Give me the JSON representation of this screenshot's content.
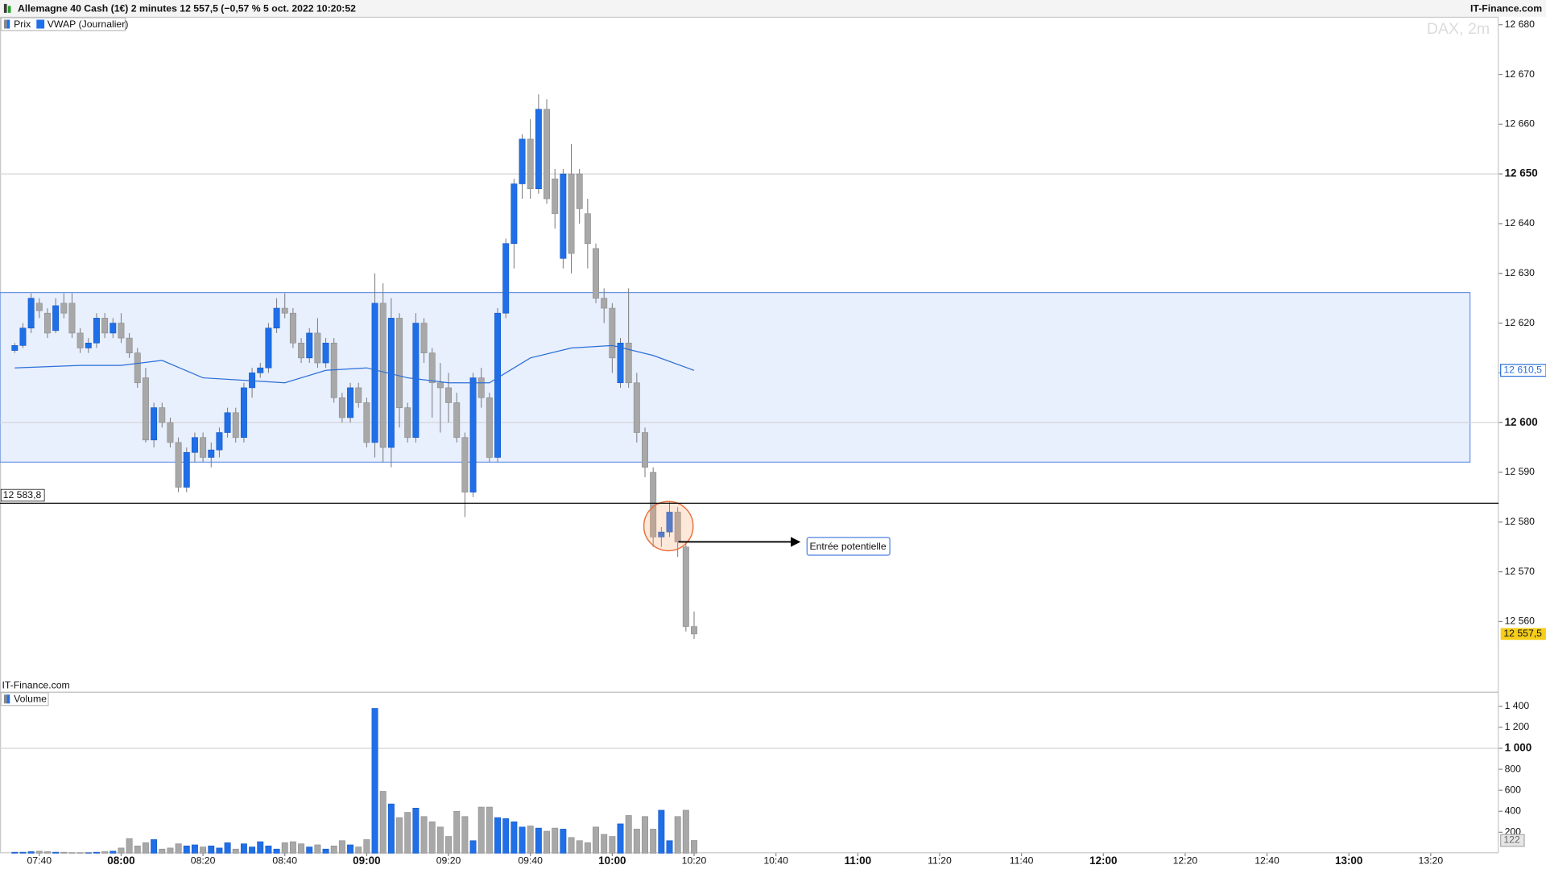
{
  "chart_data": {
    "type": "candlestick",
    "title": "Allemagne 40 Cash (1€) 2 minutes 12 557,5 (−0,57 % 5 oct. 2022 10:20:52",
    "source": "IT-Finance.com",
    "watermark": "DAX, 2m",
    "pane_source": "IT-Finance.com",
    "legend": [
      "Prix",
      "VWAP (Journalier)"
    ],
    "volume_legend": "Volume",
    "annotation": "Entrée potentielle",
    "up_color": "#1f6fe8",
    "down_color": "#a8a8a8",
    "vwap_color": "#2a6fd6",
    "x": [
      454,
      456,
      458,
      460,
      462,
      464,
      466,
      468,
      470,
      472,
      474,
      476,
      478,
      480,
      482,
      484,
      486,
      488,
      490,
      492,
      494,
      496,
      498,
      500,
      502,
      504,
      506,
      508,
      510,
      512,
      514,
      516,
      518,
      520,
      522,
      524,
      526,
      528,
      530,
      532,
      534,
      536,
      538,
      540,
      542,
      544,
      546,
      548,
      550,
      552,
      554,
      556,
      558,
      560,
      562,
      564,
      566,
      568,
      570,
      572,
      574,
      576,
      578,
      580,
      582,
      584,
      586,
      588,
      590,
      592,
      594,
      596,
      598,
      600,
      602,
      604,
      606,
      608,
      610,
      612,
      614,
      616,
      618,
      620
    ],
    "open": [
      12614.5,
      12615.5,
      12619,
      12624,
      12622,
      12618.5,
      12624,
      12624,
      12618,
      12615,
      12616,
      12621,
      12618,
      12620,
      12617,
      12614,
      12609,
      12596.5,
      12603,
      12600,
      12596,
      12587,
      12594,
      12597,
      12593,
      12594.5,
      12598,
      12602,
      12597,
      12607,
      12610,
      12611,
      12619,
      12623,
      12622,
      12616,
      12613,
      12618,
      12612,
      12616,
      12605,
      12601,
      12607,
      12604,
      12596,
      12624,
      12595,
      12621,
      12603,
      12597,
      12620,
      12614,
      12608,
      12607,
      12604,
      12597,
      12586,
      12609,
      12605,
      12593,
      12622,
      12636,
      12648,
      12657,
      12647,
      12663,
      12649,
      12633,
      12650,
      12650,
      12642,
      12635,
      12625,
      12623,
      12608,
      12616,
      12608,
      12598,
      12590,
      12577,
      12578,
      12582,
      12575,
      12559
    ],
    "high": [
      12616,
      12620,
      12626,
      12625,
      12623,
      12625,
      12626,
      12626,
      12619,
      12617,
      12622,
      12622,
      12621,
      12622,
      12618,
      12615,
      12611,
      12604,
      12604,
      12601,
      12597,
      12595,
      12598,
      12598,
      12596,
      12599,
      12603,
      12603,
      12608,
      12611,
      12612,
      12620,
      12625,
      12626,
      12623,
      12617,
      12619,
      12621,
      12617,
      12617,
      12606,
      12608,
      12608,
      12605,
      12630,
      12628,
      12625,
      12622,
      12604,
      12622,
      12621,
      12615,
      12612,
      12610,
      12606,
      12598,
      12610,
      12611,
      12606,
      12623,
      12637,
      12649,
      12658,
      12661,
      12666,
      12665,
      12651,
      12651,
      12656,
      12651,
      12645,
      12636,
      12627,
      12624,
      12617,
      12627,
      12610,
      12599,
      12591,
      12579,
      12584,
      12583,
      12576,
      12562
    ],
    "low": [
      12614,
      12615,
      12618,
      12621,
      12617,
      12618,
      12621,
      12617,
      12614,
      12614,
      12615,
      12617,
      12617,
      12616,
      12613,
      12607,
      12596,
      12595,
      12599,
      12595,
      12586,
      12586,
      12592,
      12592,
      12591,
      12593,
      12597,
      12596,
      12596,
      12605,
      12609,
      12610,
      12618,
      12621,
      12615,
      12612,
      12612,
      12611,
      12611,
      12604,
      12600,
      12600,
      12603,
      12595,
      12593,
      12592,
      12591,
      12599,
      12596,
      12596,
      12612,
      12601,
      12598,
      12600,
      12596,
      12581,
      12585,
      12603,
      12592,
      12592,
      12621,
      12631,
      12645,
      12645,
      12646,
      12644,
      12639,
      12631,
      12630,
      12640,
      12631,
      12624,
      12620,
      12610,
      12607,
      12607,
      12596,
      12589,
      12575,
      12575,
      12577,
      12573,
      12558,
      12556.5
    ],
    "close": [
      12615.5,
      12619,
      12625,
      12622.5,
      12618,
      12623.5,
      12622,
      12618,
      12615,
      12616,
      12621,
      12618,
      12620,
      12617,
      12614,
      12608,
      12596.5,
      12603,
      12600,
      12596,
      12587,
      12594,
      12597,
      12593,
      12594.5,
      12598,
      12602,
      12597,
      12607,
      12610,
      12611,
      12619,
      12623,
      12622,
      12616,
      12613,
      12618,
      12612,
      12616,
      12605,
      12601,
      12607,
      12604,
      12596,
      12624,
      12595,
      12621,
      12603,
      12597,
      12620,
      12614,
      12608,
      12607,
      12604,
      12597,
      12586,
      12609,
      12605,
      12593,
      12622,
      12636,
      12648,
      12657,
      12647,
      12663,
      12645,
      12642,
      12650,
      12634,
      12643,
      12636,
      12625,
      12623,
      12613,
      12616,
      12608,
      12598,
      12591,
      12577,
      12578,
      12582,
      12576,
      12559,
      12557.5
    ],
    "volume": [
      10,
      10,
      15,
      20,
      15,
      10,
      10,
      5,
      5,
      5,
      10,
      15,
      20,
      50,
      140,
      70,
      100,
      130,
      40,
      50,
      90,
      70,
      80,
      60,
      70,
      50,
      100,
      40,
      90,
      60,
      110,
      70,
      40,
      100,
      110,
      90,
      60,
      80,
      40,
      70,
      120,
      80,
      60,
      130,
      1380,
      590,
      470,
      340,
      390,
      430,
      350,
      300,
      250,
      160,
      400,
      350,
      120,
      440,
      440,
      340,
      330,
      300,
      250,
      260,
      240,
      210,
      240,
      230,
      150,
      120,
      100,
      250,
      180,
      160,
      280,
      360,
      230,
      350,
      230,
      410,
      120,
      350,
      410,
      122
    ],
    "vwap_x": [
      454,
      470,
      480,
      490,
      500,
      510,
      520,
      530,
      540,
      550,
      560,
      570,
      580,
      590,
      600,
      610,
      620
    ],
    "vwap": [
      12611,
      12611.5,
      12611.5,
      12612.5,
      12609,
      12608.5,
      12608,
      12610.5,
      12611,
      12609,
      12608,
      12608,
      12613,
      12615,
      12615.5,
      12613.5,
      12610.5
    ],
    "level": {
      "value": 12583.8,
      "label": "12 583,8"
    },
    "last_labels": {
      "close": "12 557,5",
      "vwap": "12 610,5",
      "volume": "122"
    },
    "xlim": [
      450.4,
      816.6
    ],
    "xticks": [
      {
        "value": 460,
        "label": "07:40"
      },
      {
        "value": 480,
        "label": "08:00"
      },
      {
        "value": 500,
        "label": "08:20"
      },
      {
        "value": 520,
        "label": "08:40"
      },
      {
        "value": 540,
        "label": "09:00"
      },
      {
        "value": 560,
        "label": "09:20"
      },
      {
        "value": 580,
        "label": "09:40"
      },
      {
        "value": 600,
        "label": "10:00"
      },
      {
        "value": 620,
        "label": "10:20"
      },
      {
        "value": 640,
        "label": "10:40"
      },
      {
        "value": 660,
        "label": "11:00"
      },
      {
        "value": 680,
        "label": "11:20"
      },
      {
        "value": 700,
        "label": "11:40"
      },
      {
        "value": 720,
        "label": "12:00"
      },
      {
        "value": 740,
        "label": "12:20"
      },
      {
        "value": 760,
        "label": "12:40"
      },
      {
        "value": 780,
        "label": "13:00"
      },
      {
        "value": 800,
        "label": "13:20"
      }
    ],
    "ylim": [
      12545.9,
      12681.6
    ],
    "yticks": [
      {
        "value": 12560,
        "label": "12 560"
      },
      {
        "value": 12570,
        "label": "12 570"
      },
      {
        "value": 12580,
        "label": "12 580"
      },
      {
        "value": 12590,
        "label": "12 590"
      },
      {
        "value": 12600,
        "label": "12 600"
      },
      {
        "value": 12610,
        "label": "12 610"
      },
      {
        "value": 12620,
        "label": "12 620"
      },
      {
        "value": 12630,
        "label": "12 630"
      },
      {
        "value": 12640,
        "label": "12 640"
      },
      {
        "value": 12650,
        "label": "12 650"
      },
      {
        "value": 12660,
        "label": "12 660"
      },
      {
        "value": 12670,
        "label": "12 670"
      },
      {
        "value": 12680,
        "label": "12 680"
      }
    ],
    "y2lim": [
      0,
      1540
    ],
    "y2ticks": [
      200,
      400,
      600,
      800,
      {
        "value": 1000,
        "label": "1 000"
      },
      {
        "value": 1200,
        "label": "1 200"
      },
      {
        "value": 1400,
        "label": "1 400"
      }
    ]
  }
}
